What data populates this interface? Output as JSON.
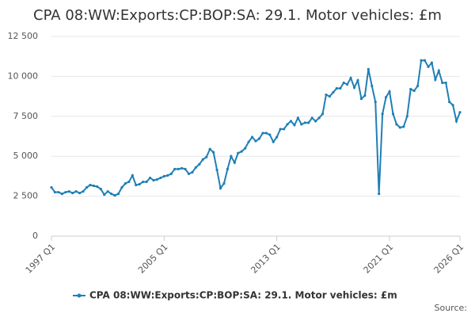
{
  "chart_data": {
    "type": "line",
    "title": "CPA 08:WW:Exports:CP:BOP:SA: 29.1. Motor vehicles: £m",
    "source": "Source:",
    "categories": [
      "1997 Q1",
      null,
      null,
      null,
      null,
      null,
      null,
      null,
      null,
      null,
      null,
      null,
      null,
      null,
      null,
      null,
      null,
      null,
      null,
      null,
      null,
      null,
      null,
      null,
      null,
      null,
      null,
      null,
      null,
      null,
      null,
      null,
      "2005 Q1",
      null,
      null,
      null,
      null,
      null,
      null,
      null,
      null,
      null,
      null,
      null,
      null,
      null,
      null,
      null,
      null,
      null,
      null,
      null,
      null,
      null,
      null,
      null,
      null,
      null,
      null,
      null,
      null,
      null,
      null,
      null,
      "2013 Q1",
      null,
      null,
      null,
      null,
      null,
      null,
      null,
      null,
      null,
      null,
      null,
      null,
      null,
      null,
      null,
      null,
      null,
      null,
      null,
      null,
      null,
      null,
      null,
      null,
      null,
      null,
      null,
      null,
      null,
      null,
      null,
      "2021 Q1",
      null,
      null,
      null,
      null,
      null,
      null,
      null,
      null,
      null,
      null,
      null,
      null,
      null,
      null,
      null,
      null,
      null,
      null,
      null,
      "2026 Q1"
    ],
    "series": [
      {
        "name": "CPA 08:WW:Exports:CP:BOP:SA: 29.1. Motor vehicles: £m",
        "color": "#1f7fb6",
        "values": [
          3050,
          2750,
          2750,
          2650,
          2750,
          2800,
          2700,
          2800,
          2700,
          2800,
          3050,
          3200,
          3150,
          3100,
          2950,
          2600,
          2800,
          2650,
          2550,
          2650,
          3050,
          3300,
          3400,
          3800,
          3200,
          3250,
          3400,
          3400,
          3650,
          3500,
          3550,
          3650,
          3750,
          3800,
          3900,
          4200,
          4200,
          4250,
          4200,
          3900,
          4000,
          4300,
          4500,
          4800,
          4950,
          5450,
          5250,
          4150,
          3000,
          3300,
          4200,
          5000,
          4600,
          5200,
          5300,
          5500,
          5900,
          6200,
          5950,
          6100,
          6450,
          6450,
          6350,
          5900,
          6200,
          6700,
          6700,
          7000,
          7200,
          6950,
          7400,
          7000,
          7100,
          7100,
          7400,
          7200,
          7400,
          7650,
          8850,
          8750,
          9000,
          9250,
          9250,
          9600,
          9500,
          9900,
          9300,
          9750,
          8600,
          8800,
          10450,
          9400,
          8400,
          2650,
          7650,
          8700,
          9050,
          7650,
          7000,
          6800,
          6850,
          7500,
          9200,
          9100,
          9400,
          11000,
          11000,
          10600,
          10850,
          9800,
          10350,
          9600,
          9600,
          8400,
          8200,
          7200,
          7750
        ]
      }
    ],
    "ylim": [
      0,
      12500
    ],
    "yticks": [
      0,
      {
        "value": 2500,
        "label": "2 500"
      },
      {
        "value": 5000,
        "label": "5 000"
      },
      {
        "value": 7500,
        "label": "7 500"
      },
      {
        "value": 10000,
        "label": "10 000"
      },
      {
        "value": 12500,
        "label": "12 500"
      }
    ],
    "grid": true,
    "legend": "bottom"
  }
}
